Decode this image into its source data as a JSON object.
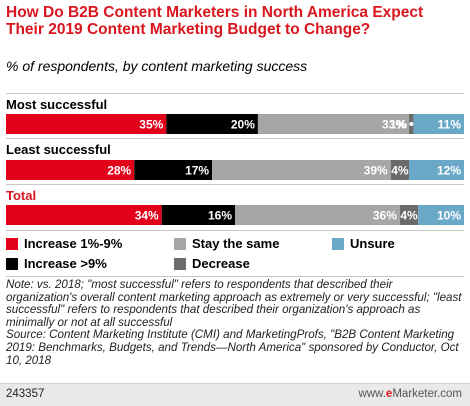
{
  "header": {
    "title": "How Do B2B Content Marketers in North America Expect Their 2019 Content Marketing Budget to Change?",
    "subtitle": "% of respondents, by content marketing success"
  },
  "chart_data": {
    "type": "bar",
    "orientation": "horizontal",
    "stacked": true,
    "categories": [
      "Most successful",
      "Least successful",
      "Total"
    ],
    "series": [
      {
        "name": "Increase 1%-9%",
        "values": [
          35,
          28,
          34
        ],
        "color": "#e2001a"
      },
      {
        "name": "Increase >9%",
        "values": [
          20,
          17,
          16
        ],
        "color": "#000000"
      },
      {
        "name": "Stay the same",
        "values": [
          33,
          39,
          36
        ],
        "color": "#a6a6a6"
      },
      {
        "name": "Decrease",
        "values": [
          1,
          4,
          4
        ],
        "color": "#6b6b6b"
      },
      {
        "name": "Unsure",
        "values": [
          11,
          12,
          10
        ],
        "color": "#6aa8c8"
      }
    ],
    "data_labels": [
      [
        "35%",
        "20%",
        "33%",
        "1%",
        "11%"
      ],
      [
        "28%",
        "17%",
        "39%",
        "4%",
        "12%"
      ],
      [
        "34%",
        "16%",
        "36%",
        "4%",
        "10%"
      ]
    ],
    "legend": {
      "placement": "bottom",
      "items": [
        "Increase 1%-9%",
        "Increase >9%",
        "Stay the same",
        "Decrease",
        "Unsure"
      ]
    },
    "xlim": [
      0,
      100
    ],
    "grid": false
  },
  "note": "Note: vs. 2018; \"most successful\" refers to respondents that described their organization's overall content marketing approach as extremely or very successful; \"least successful\" refers to respondents that described their organization's approach as minimally or not at all successful",
  "source": "Source: Content Marketing Institute (CMI) and MarketingProfs, \"B2B Content Marketing 2019: Benchmarks, Budgets, and Trends—North America\" sponsored by Conductor, Oct 10, 2018",
  "footer": {
    "chart_id": "243357",
    "brand_prefix": "www.",
    "brand_e": "e",
    "brand_rest": "Marketer.com"
  }
}
